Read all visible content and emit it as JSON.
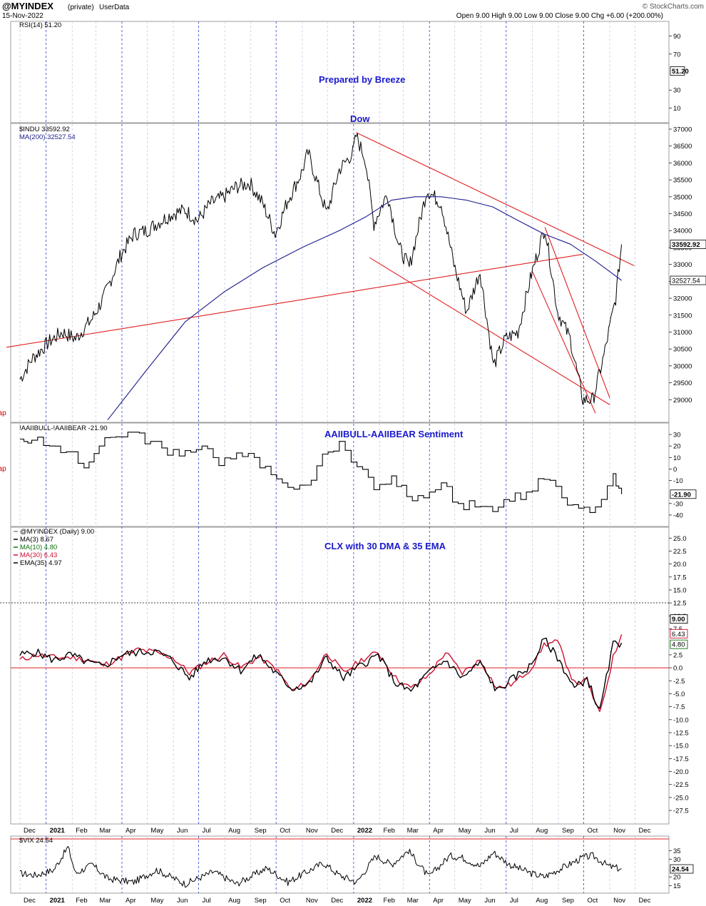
{
  "header": {
    "symbol": "@MYINDEX",
    "private_label": "(private)",
    "source_label": "UserData",
    "date": "15-Nov-2022",
    "ohlc": "Open 9.00  High 9.00  Low 9.00  Close 9.00  Chg +6.00 (+200.00%)",
    "open_label": "Open",
    "open": "9.00",
    "high_label": "High",
    "high": "9.00",
    "low_label": "Low",
    "low": "9.00",
    "close_label": "Close",
    "close": "9.00",
    "chg_label": "Chg",
    "chg": "+6.00 (+200.00%)",
    "watermark": "© StockCharts.com"
  },
  "colors": {
    "price": "#000000",
    "ma200": "#1c1c8c",
    "trend": "#e02020",
    "annotation": "#1a1acc",
    "ma30": "#cc1030",
    "ma10": "#107010",
    "grid_month": "#2040c8"
  },
  "x_axis_months": [
    "Dec",
    "2021",
    "Feb",
    "Mar",
    "Apr",
    "May",
    "Jun",
    "Jul",
    "Aug",
    "Sep",
    "Oct",
    "Nov",
    "Dec",
    "2022",
    "Feb",
    "Mar",
    "Apr",
    "May",
    "Jun",
    "Jul",
    "Aug",
    "Sep",
    "Oct",
    "Nov",
    "Dec"
  ],
  "left_markers": [
    "gap",
    "gap"
  ],
  "chart_data": [
    {
      "type": "line",
      "panel": "rsi",
      "legend": "RSI(14) 51.20",
      "annotation": "Prepared by Breeze",
      "y_ticks": [
        90,
        70,
        51.2,
        30,
        10
      ],
      "last_value": "51.20",
      "series": [
        {
          "name": "RSI(14)",
          "values": []
        }
      ]
    },
    {
      "type": "line",
      "panel": "price",
      "annotation": "Dow",
      "legend": [
        "$INDU 33592.92",
        "MA(200) 32527.54"
      ],
      "ylim": [
        28500,
        37000
      ],
      "y_ticks": [
        37000,
        36500,
        36000,
        35500,
        35000,
        34500,
        34000,
        33500,
        33000,
        32500,
        32000,
        31500,
        31000,
        30500,
        30000,
        29500,
        29000
      ],
      "last_value": "33592.92",
      "ma_last_value": "32527.54",
      "series": [
        {
          "name": "$INDU",
          "x": [
            "2020-12-01",
            "2020-12-15",
            "2021-01-04",
            "2021-01-20",
            "2021-02-05",
            "2021-02-25",
            "2021-03-10",
            "2021-03-31",
            "2021-04-15",
            "2021-04-30",
            "2021-05-12",
            "2021-05-31",
            "2021-06-15",
            "2021-06-30",
            "2021-07-15",
            "2021-07-31",
            "2021-08-15",
            "2021-08-31",
            "2021-09-15",
            "2021-09-30",
            "2021-10-15",
            "2021-10-31",
            "2021-11-08",
            "2021-11-30",
            "2021-12-15",
            "2021-12-31",
            "2022-01-04",
            "2022-01-15",
            "2022-01-25",
            "2022-02-10",
            "2022-02-24",
            "2022-03-08",
            "2022-03-29",
            "2022-04-15",
            "2022-04-30",
            "2022-05-15",
            "2022-05-31",
            "2022-06-16",
            "2022-06-30",
            "2022-07-15",
            "2022-07-31",
            "2022-08-16",
            "2022-08-31",
            "2022-09-15",
            "2022-09-30",
            "2022-10-12",
            "2022-10-25",
            "2022-11-08",
            "2022-11-15"
          ],
          "values": [
            29600,
            30200,
            30700,
            31000,
            30800,
            31400,
            32000,
            33300,
            33900,
            34000,
            34200,
            34500,
            34600,
            34300,
            34800,
            35000,
            35300,
            35400,
            34800,
            33900,
            34900,
            35700,
            36300,
            34500,
            35800,
            36300,
            36800,
            36100,
            34200,
            35100,
            33500,
            32900,
            35200,
            34800,
            33000,
            31600,
            32800,
            30000,
            30800,
            31000,
            32700,
            34100,
            31600,
            30800,
            29000,
            29000,
            30300,
            32000,
            33592.92
          ]
        },
        {
          "name": "MA(200)",
          "x": [
            "2021-03-15",
            "2021-05-01",
            "2021-06-15",
            "2021-08-01",
            "2021-09-15",
            "2021-11-01",
            "2021-12-15",
            "2022-01-15",
            "2022-02-15",
            "2022-03-15",
            "2022-04-15",
            "2022-05-15",
            "2022-06-15",
            "2022-07-15",
            "2022-08-15",
            "2022-09-15",
            "2022-10-15",
            "2022-11-15"
          ],
          "values": [
            28400,
            29900,
            31300,
            32200,
            32900,
            33500,
            34000,
            34400,
            34900,
            35000,
            35000,
            34900,
            34700,
            34300,
            33900,
            33600,
            33100,
            32527.54
          ]
        }
      ]
    },
    {
      "type": "line",
      "panel": "sentiment",
      "legend": "!AAIIBULL-!AAIIBEAR -21.90",
      "annotation": "AAIIBULL-AAIIBEAR Sentiment",
      "ylim": [
        -45,
        35
      ],
      "y_ticks": [
        30,
        20,
        10,
        0,
        -10,
        -21.9,
        -30,
        -40
      ],
      "last_value": "-21.90",
      "series": [
        {
          "name": "!AAIIBULL-!AAIIBEAR",
          "x": [
            "2020-12-01",
            "2020-12-15",
            "2021-01-05",
            "2021-01-25",
            "2021-02-15",
            "2021-03-05",
            "2021-03-25",
            "2021-04-15",
            "2021-05-05",
            "2021-05-25",
            "2021-06-15",
            "2021-07-05",
            "2021-07-25",
            "2021-08-15",
            "2021-09-05",
            "2021-09-25",
            "2021-10-15",
            "2021-11-05",
            "2021-11-25",
            "2021-12-15",
            "2022-01-05",
            "2022-01-25",
            "2022-02-15",
            "2022-03-05",
            "2022-03-25",
            "2022-04-15",
            "2022-05-05",
            "2022-05-25",
            "2022-06-15",
            "2022-07-05",
            "2022-07-25",
            "2022-08-15",
            "2022-09-05",
            "2022-09-25",
            "2022-10-15",
            "2022-11-05",
            "2022-11-15"
          ],
          "values": [
            26,
            25,
            20,
            15,
            1,
            20,
            28,
            32,
            24,
            12,
            16,
            20,
            3,
            14,
            10,
            -5,
            -16,
            -14,
            13,
            24,
            2,
            -18,
            -6,
            -24,
            -25,
            -12,
            -30,
            -33,
            -37,
            -28,
            -20,
            -9,
            -25,
            -34,
            -33,
            -4,
            -21.9
          ]
        }
      ]
    },
    {
      "type": "line",
      "panel": "clx",
      "legend": [
        "@MYINDEX (Daily) 9.00",
        "MA(3) 8.67",
        "MA(10) 4.80",
        "MA(30) 6.43",
        "EMA(35) 4.97"
      ],
      "annotation": "CLX with 30 DMA & 35 EMA",
      "ylim": [
        -29,
        26
      ],
      "y_ticks": [
        25,
        22.5,
        20,
        17.5,
        15,
        12.5,
        10,
        9.0,
        7.5,
        6.43,
        4.8,
        2.5,
        0,
        -2.5,
        -5,
        -7.5,
        -10,
        -12.5,
        -15,
        -17.5,
        -20,
        -22.5,
        -25,
        -27.5
      ],
      "last_values": [
        "9.00",
        "6.43",
        "4.80"
      ],
      "series": [
        {
          "name": "MA(10)",
          "x": [
            "2020-12-01",
            "2020-12-20",
            "2021-01-10",
            "2021-01-30",
            "2021-02-20",
            "2021-03-10",
            "2021-03-31",
            "2021-04-20",
            "2021-05-10",
            "2021-05-31",
            "2021-06-20",
            "2021-07-10",
            "2021-07-31",
            "2021-08-20",
            "2021-09-10",
            "2021-09-30",
            "2021-10-20",
            "2021-11-10",
            "2021-11-30",
            "2021-12-20",
            "2022-01-10",
            "2022-01-30",
            "2022-02-20",
            "2022-03-10",
            "2022-03-31",
            "2022-04-20",
            "2022-05-10",
            "2022-05-31",
            "2022-06-20",
            "2022-07-10",
            "2022-07-31",
            "2022-08-15",
            "2022-08-31",
            "2022-09-20",
            "2022-10-05",
            "2022-10-20",
            "2022-11-05",
            "2022-11-15"
          ],
          "values": [
            2.5,
            3.0,
            1.5,
            2.5,
            1.0,
            0.2,
            2.5,
            3.0,
            3.2,
            1.5,
            -2.0,
            1.5,
            2.0,
            -0.5,
            2.5,
            -1.0,
            -4.0,
            -3.0,
            2.0,
            -2.0,
            0.5,
            2.5,
            -3.0,
            -4.5,
            -1.0,
            1.5,
            -2.0,
            1.0,
            -4.5,
            -2.0,
            0.5,
            5.5,
            2.0,
            -4.0,
            -2.0,
            -8.5,
            4.5,
            4.8
          ]
        },
        {
          "name": "MA(30)",
          "x": [
            "2020-12-01",
            "2020-12-20",
            "2021-01-10",
            "2021-01-30",
            "2021-02-20",
            "2021-03-10",
            "2021-03-31",
            "2021-04-20",
            "2021-05-10",
            "2021-05-31",
            "2021-06-20",
            "2021-07-10",
            "2021-07-31",
            "2021-08-20",
            "2021-09-10",
            "2021-09-30",
            "2021-10-20",
            "2021-11-10",
            "2021-11-30",
            "2021-12-20",
            "2022-01-10",
            "2022-01-30",
            "2022-02-20",
            "2022-03-10",
            "2022-03-31",
            "2022-04-20",
            "2022-05-10",
            "2022-05-31",
            "2022-06-20",
            "2022-07-10",
            "2022-07-31",
            "2022-08-15",
            "2022-08-31",
            "2022-09-20",
            "2022-10-05",
            "2022-10-20",
            "2022-11-05",
            "2022-11-15"
          ],
          "values": [
            1.5,
            2.5,
            2.0,
            2.0,
            1.5,
            0.5,
            2.0,
            3.5,
            3.0,
            2.0,
            -1.0,
            1.0,
            2.5,
            0.0,
            2.0,
            0.0,
            -4.5,
            -2.5,
            3.0,
            -1.0,
            1.5,
            3.0,
            -2.0,
            -4.0,
            -1.5,
            3.0,
            -1.0,
            1.5,
            -4.0,
            -3.0,
            0.0,
            4.5,
            5.0,
            -3.0,
            -2.5,
            -9.0,
            2.0,
            6.43
          ]
        }
      ]
    },
    {
      "type": "line",
      "panel": "vix",
      "legend": "$VIX 24.54",
      "ylim": [
        14,
        40
      ],
      "y_ticks": [
        35,
        30,
        24.54,
        20,
        15
      ],
      "last_value": "24.54",
      "series": [
        {
          "name": "$VIX",
          "x": [
            "2020-12-01",
            "2020-12-20",
            "2021-01-10",
            "2021-01-27",
            "2021-02-05",
            "2021-02-25",
            "2021-03-15",
            "2021-04-15",
            "2021-05-12",
            "2021-06-15",
            "2021-07-19",
            "2021-08-15",
            "2021-09-20",
            "2021-10-15",
            "2021-11-26",
            "2021-12-15",
            "2022-01-05",
            "2022-01-27",
            "2022-02-15",
            "2022-03-07",
            "2022-03-31",
            "2022-04-25",
            "2022-05-10",
            "2022-05-31",
            "2022-06-16",
            "2022-07-05",
            "2022-07-31",
            "2022-08-15",
            "2022-09-05",
            "2022-09-30",
            "2022-10-12",
            "2022-10-31",
            "2022-11-15"
          ],
          "values": [
            22,
            21,
            24,
            37,
            22,
            27,
            19,
            17,
            24,
            16,
            23,
            16,
            25,
            17,
            28,
            21,
            17,
            32,
            27,
            35,
            20,
            32,
            31,
            26,
            34,
            27,
            22,
            20,
            25,
            31,
            32,
            26,
            24.54
          ]
        }
      ]
    }
  ]
}
